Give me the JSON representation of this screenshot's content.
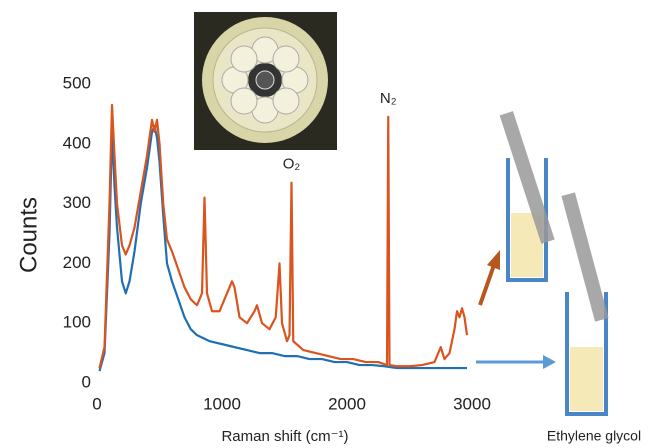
{
  "chart_data": {
    "type": "line",
    "y_label": "Counts",
    "x_label": "Raman shift (cm⁻¹)",
    "annotations": [
      {
        "text": "O₂",
        "x": 1556,
        "y": 335
      },
      {
        "text": "N₂",
        "x": 2330,
        "y": 445
      }
    ],
    "side_label": "Ethylene glycol",
    "xlim": [
      0,
      3000
    ],
    "xticks": [
      0,
      1000,
      2000,
      3000
    ],
    "ylim": [
      0,
      500
    ],
    "yticks": [
      0,
      100,
      200,
      300,
      400,
      500
    ],
    "series": [
      {
        "color": "#d9541e",
        "x": [
          20,
          60,
          100,
          120,
          140,
          160,
          200,
          230,
          260,
          300,
          350,
          400,
          440,
          460,
          480,
          500,
          530,
          560,
          600,
          650,
          700,
          750,
          800,
          840,
          860,
          880,
          920,
          980,
          1040,
          1080,
          1100,
          1140,
          1200,
          1260,
          1280,
          1320,
          1380,
          1430,
          1460,
          1480,
          1520,
          1540,
          1556,
          1570,
          1650,
          1750,
          1850,
          1950,
          2050,
          2150,
          2250,
          2320,
          2330,
          2340,
          2400,
          2500,
          2600,
          2700,
          2750,
          2780,
          2820,
          2860,
          2880,
          2900,
          2920,
          2940,
          2960
        ],
        "values": [
          25,
          60,
          300,
          465,
          380,
          300,
          230,
          215,
          230,
          260,
          320,
          380,
          440,
          420,
          440,
          400,
          300,
          240,
          220,
          190,
          160,
          140,
          130,
          150,
          310,
          150,
          120,
          120,
          150,
          170,
          160,
          110,
          100,
          120,
          130,
          100,
          90,
          110,
          200,
          100,
          70,
          80,
          335,
          70,
          55,
          50,
          45,
          40,
          40,
          35,
          35,
          30,
          445,
          30,
          28,
          28,
          30,
          35,
          60,
          40,
          50,
          90,
          120,
          110,
          125,
          110,
          80
        ]
      },
      {
        "color": "#1f6fb5",
        "x": [
          20,
          60,
          100,
          120,
          140,
          160,
          200,
          230,
          260,
          300,
          350,
          400,
          440,
          460,
          480,
          500,
          530,
          560,
          600,
          650,
          700,
          750,
          800,
          900,
          1000,
          1100,
          1200,
          1300,
          1400,
          1500,
          1600,
          1700,
          1800,
          1900,
          2000,
          2100,
          2200,
          2300,
          2400,
          2500,
          2600,
          2700,
          2800,
          2900,
          2960
        ],
        "values": [
          20,
          50,
          250,
          420,
          330,
          260,
          170,
          150,
          170,
          220,
          300,
          360,
          420,
          430,
          410,
          370,
          280,
          200,
          170,
          140,
          110,
          90,
          80,
          70,
          65,
          60,
          55,
          50,
          50,
          45,
          45,
          40,
          40,
          35,
          35,
          30,
          30,
          28,
          25,
          25,
          25,
          25,
          25,
          25,
          25
        ]
      }
    ]
  }
}
